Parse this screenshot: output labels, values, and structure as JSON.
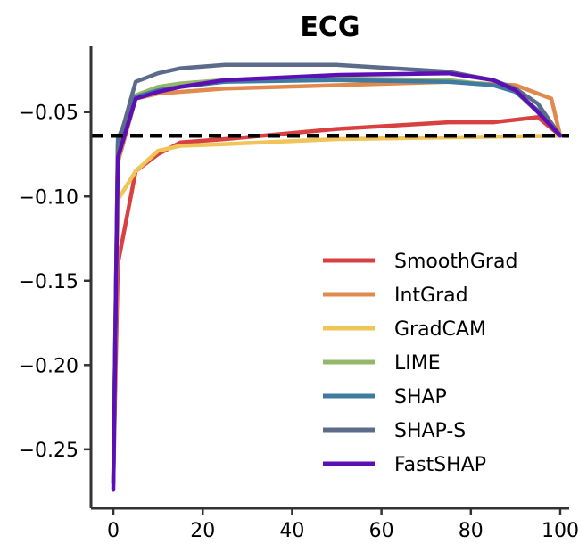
{
  "chart_data": {
    "type": "line",
    "title": "ECG",
    "xlabel": "",
    "ylabel": "",
    "xlim": [
      -5,
      102
    ],
    "ylim": [
      -0.285,
      -0.011
    ],
    "x_ticks": [
      {
        "value": 0,
        "label": "0"
      },
      {
        "value": 20,
        "label": "20"
      },
      {
        "value": 40,
        "label": "40"
      },
      {
        "value": 60,
        "label": "60"
      },
      {
        "value": 80,
        "label": "80"
      },
      {
        "value": 100,
        "label": "100"
      }
    ],
    "y_ticks": [
      {
        "value": -0.05,
        "label": "−0.05"
      },
      {
        "value": -0.1,
        "label": "−0.10"
      },
      {
        "value": -0.15,
        "label": "−0.15"
      },
      {
        "value": -0.2,
        "label": "−0.20"
      },
      {
        "value": -0.25,
        "label": "−0.25"
      }
    ],
    "reference_line": {
      "y": -0.064,
      "color": "#000000",
      "style": "dashed"
    },
    "legend_position": "lower-right",
    "grid": false,
    "series": [
      {
        "name": "SmoothGrad",
        "color": "#d94040",
        "x": [
          0,
          1,
          5,
          10,
          15,
          25,
          50,
          75,
          85,
          95,
          100
        ],
        "y": [
          -0.27,
          -0.14,
          -0.085,
          -0.075,
          -0.068,
          -0.066,
          -0.06,
          -0.056,
          -0.056,
          -0.053,
          -0.064
        ]
      },
      {
        "name": "IntGrad",
        "color": "#e08a4e",
        "x": [
          0,
          1,
          5,
          10,
          15,
          25,
          50,
          75,
          90,
          98,
          100
        ],
        "y": [
          -0.27,
          -0.08,
          -0.042,
          -0.039,
          -0.038,
          -0.036,
          -0.034,
          -0.032,
          -0.034,
          -0.042,
          -0.064
        ]
      },
      {
        "name": "GradCAM",
        "color": "#f0c458",
        "x": [
          0,
          1,
          5,
          10,
          15,
          25,
          50,
          75,
          100
        ],
        "y": [
          -0.27,
          -0.102,
          -0.085,
          -0.073,
          -0.07,
          -0.069,
          -0.066,
          -0.065,
          -0.064
        ]
      },
      {
        "name": "LIME",
        "color": "#93b86a",
        "x": [
          0,
          1,
          5,
          10,
          15,
          25,
          50,
          75,
          85,
          90,
          95,
          100
        ],
        "y": [
          -0.27,
          -0.068,
          -0.04,
          -0.035,
          -0.033,
          -0.031,
          -0.03,
          -0.031,
          -0.034,
          -0.038,
          -0.05,
          -0.064
        ]
      },
      {
        "name": "SHAP",
        "color": "#3f7aa0",
        "x": [
          0,
          1,
          5,
          10,
          15,
          25,
          50,
          75,
          85,
          90,
          95,
          100
        ],
        "y": [
          -0.27,
          -0.066,
          -0.041,
          -0.037,
          -0.035,
          -0.032,
          -0.031,
          -0.032,
          -0.034,
          -0.038,
          -0.049,
          -0.064
        ]
      },
      {
        "name": "SHAP-S",
        "color": "#5c6b8a",
        "x": [
          0,
          1,
          5,
          10,
          15,
          25,
          50,
          75,
          85,
          90,
          95,
          100
        ],
        "y": [
          -0.27,
          -0.07,
          -0.032,
          -0.027,
          -0.024,
          -0.022,
          -0.022,
          -0.026,
          -0.031,
          -0.036,
          -0.045,
          -0.064
        ]
      },
      {
        "name": "FastSHAP",
        "color": "#5c0fb5",
        "x": [
          0,
          1,
          5,
          10,
          15,
          25,
          50,
          75,
          85,
          90,
          95,
          100
        ],
        "y": [
          -0.274,
          -0.077,
          -0.042,
          -0.038,
          -0.035,
          -0.031,
          -0.028,
          -0.027,
          -0.031,
          -0.037,
          -0.05,
          -0.064
        ]
      }
    ]
  }
}
